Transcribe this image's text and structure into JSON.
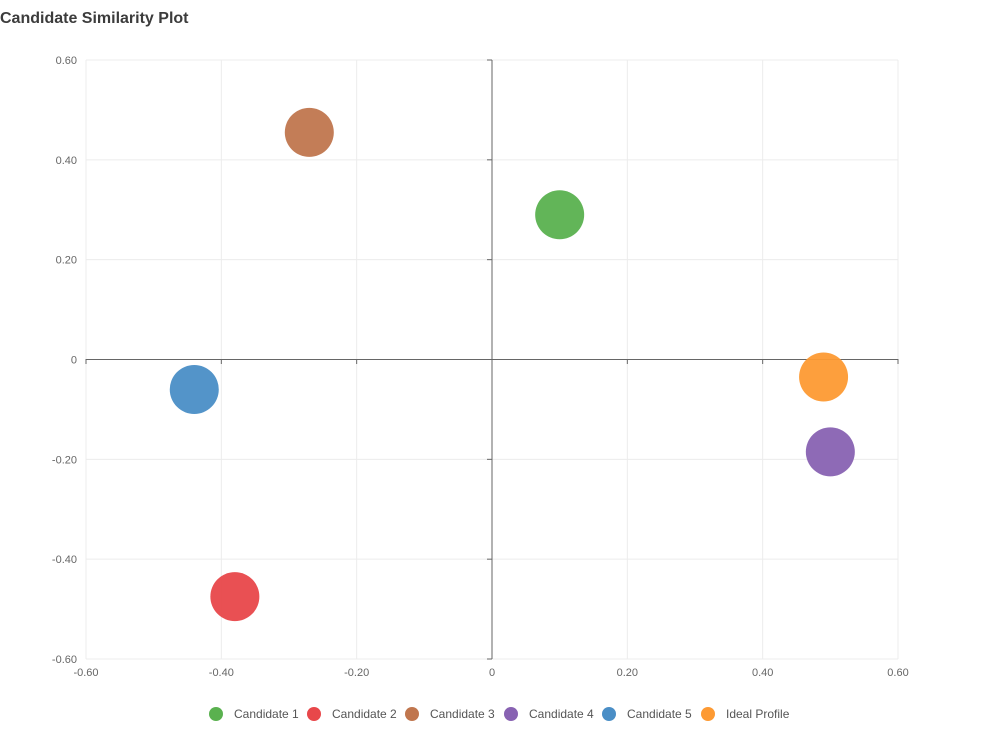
{
  "chart_data": {
    "type": "scatter",
    "title": "Candidate Similarity Plot",
    "xlabel": "",
    "ylabel": "",
    "xlim": [
      -0.6,
      0.6
    ],
    "ylim": [
      -0.6,
      0.6
    ],
    "x_ticks": [
      -0.6,
      -0.4,
      -0.2,
      0,
      0.2,
      0.4,
      0.6
    ],
    "y_ticks": [
      0.6,
      0.4,
      0.2,
      0,
      -0.2,
      -0.4,
      -0.6
    ],
    "x_tick_labels": [
      "-0.60",
      "-0.40",
      "-0.20",
      "0",
      "0.20",
      "0.40",
      "0.60"
    ],
    "y_tick_labels": [
      "0.60",
      "0.40",
      "0.20",
      "0",
      "-0.20",
      "-0.40",
      "-0.60"
    ],
    "grid": true,
    "legend_position": "bottom-center",
    "series": [
      {
        "name": "Candidate 1",
        "color": "#5ab14f",
        "x": 0.1,
        "y": 0.29
      },
      {
        "name": "Candidate 2",
        "color": "#e8474a",
        "x": -0.38,
        "y": -0.475
      },
      {
        "name": "Candidate 3",
        "color": "#c0764e",
        "x": -0.27,
        "y": 0.455
      },
      {
        "name": "Candidate 4",
        "color": "#8862b2",
        "x": 0.5,
        "y": -0.185
      },
      {
        "name": "Candidate 5",
        "color": "#4a8ec6",
        "x": -0.44,
        "y": -0.06
      },
      {
        "name": "Ideal Profile",
        "color": "#fd9a33",
        "x": 0.49,
        "y": -0.035
      }
    ]
  }
}
